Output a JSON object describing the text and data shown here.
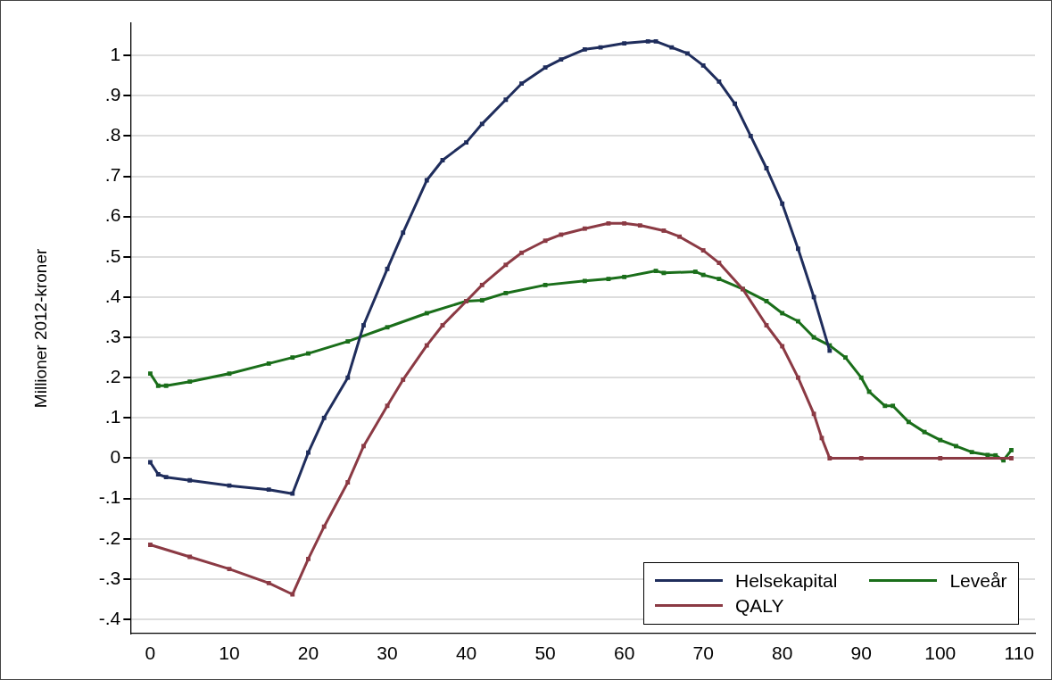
{
  "chart_data": {
    "type": "line",
    "ylabel": "Millioner 2012-kroner",
    "xlim": [
      -2.5,
      112
    ],
    "xticks": [
      0,
      10,
      20,
      30,
      40,
      50,
      60,
      70,
      80,
      90,
      100,
      110
    ],
    "ylim": [
      -0.435,
      1.08
    ],
    "yticks": [
      {
        "value": -0.4,
        "label": "-.4"
      },
      {
        "value": -0.3,
        "label": "-.3"
      },
      {
        "value": -0.2,
        "label": "-.2"
      },
      {
        "value": -0.1,
        "label": "-.1"
      },
      0,
      {
        "value": 0.1,
        "label": ".1"
      },
      {
        "value": 0.2,
        "label": ".2"
      },
      {
        "value": 0.3,
        "label": ".3"
      },
      {
        "value": 0.4,
        "label": ".4"
      },
      {
        "value": 0.5,
        "label": ".5"
      },
      {
        "value": 0.6,
        "label": ".6"
      },
      {
        "value": 0.7,
        "label": ".7"
      },
      {
        "value": 0.8,
        "label": ".8"
      },
      {
        "value": 0.9,
        "label": ".9"
      },
      1
    ],
    "grid": "y",
    "legend": "bottom right",
    "marker": "square",
    "line_style": "solid",
    "series": [
      {
        "name": "Helsekapital",
        "color": "#1f2d5c",
        "x": [
          0,
          1,
          2,
          5,
          10,
          15,
          18,
          20,
          22,
          25,
          27,
          30,
          32,
          35,
          37,
          40,
          42,
          45,
          47,
          50,
          52,
          55,
          57,
          60,
          63,
          64,
          66,
          68,
          70,
          72,
          74,
          76,
          78,
          80,
          82,
          84,
          86
        ],
        "values": [
          -0.01,
          -0.04,
          -0.047,
          -0.055,
          -0.068,
          -0.078,
          -0.088,
          0.014,
          0.1,
          0.2,
          0.33,
          0.47,
          0.56,
          0.69,
          0.74,
          0.784,
          0.83,
          0.89,
          0.93,
          0.97,
          0.99,
          1.015,
          1.02,
          1.03,
          1.035,
          1.035,
          1.02,
          1.005,
          0.975,
          0.935,
          0.88,
          0.8,
          0.72,
          0.632,
          0.52,
          0.4,
          0.267
        ]
      },
      {
        "name": "QALY",
        "color": "#8b3a44",
        "x": [
          0,
          5,
          10,
          15,
          18,
          20,
          22,
          25,
          27,
          30,
          32,
          35,
          37,
          40,
          42,
          45,
          47,
          50,
          52,
          55,
          58,
          60,
          62,
          65,
          67,
          70,
          72,
          75,
          78,
          80,
          82,
          84,
          85,
          86,
          90,
          100,
          109
        ],
        "values": [
          -0.215,
          -0.245,
          -0.275,
          -0.31,
          -0.338,
          -0.25,
          -0.17,
          -0.06,
          0.03,
          0.13,
          0.195,
          0.28,
          0.33,
          0.39,
          0.43,
          0.48,
          0.51,
          0.54,
          0.555,
          0.57,
          0.583,
          0.583,
          0.578,
          0.565,
          0.55,
          0.516,
          0.485,
          0.42,
          0.33,
          0.278,
          0.2,
          0.11,
          0.05,
          0,
          0,
          0,
          0
        ]
      },
      {
        "name": "Leveår",
        "color": "#1a6e1a",
        "x": [
          0,
          1,
          2,
          5,
          10,
          15,
          18,
          20,
          25,
          30,
          35,
          40,
          42,
          45,
          50,
          55,
          58,
          60,
          64,
          65,
          69,
          70,
          72,
          75,
          78,
          80,
          82,
          84,
          86,
          88,
          90,
          91,
          93,
          94,
          96,
          98,
          100,
          102,
          104,
          106,
          107,
          108,
          109
        ],
        "values": [
          0.21,
          0.18,
          0.18,
          0.19,
          0.21,
          0.235,
          0.25,
          0.26,
          0.29,
          0.325,
          0.36,
          0.39,
          0.392,
          0.41,
          0.43,
          0.44,
          0.445,
          0.45,
          0.465,
          0.46,
          0.463,
          0.455,
          0.445,
          0.42,
          0.39,
          0.36,
          0.34,
          0.3,
          0.28,
          0.25,
          0.2,
          0.165,
          0.13,
          0.13,
          0.09,
          0.065,
          0.045,
          0.03,
          0.015,
          0.008,
          0.007,
          -0.005,
          0.02
        ]
      }
    ]
  }
}
